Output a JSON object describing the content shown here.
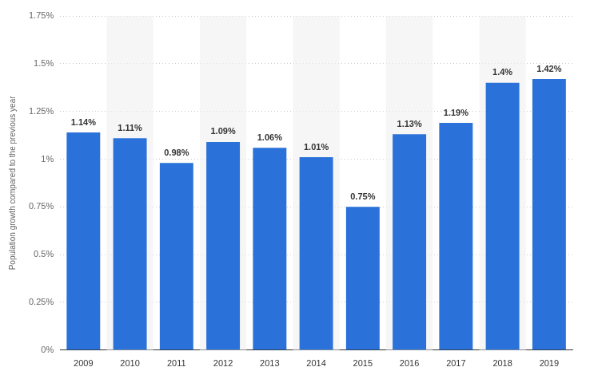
{
  "chart_data": {
    "type": "bar",
    "y_label": "Population growth compared to the previous year",
    "categories": [
      "2009",
      "2010",
      "2011",
      "2012",
      "2013",
      "2014",
      "2015",
      "2016",
      "2017",
      "2018",
      "2019"
    ],
    "values": [
      1.14,
      1.11,
      0.98,
      1.09,
      1.06,
      1.01,
      0.75,
      1.13,
      1.19,
      1.4,
      1.42
    ],
    "value_labels": [
      "1.14%",
      "1.11%",
      "0.98%",
      "1.09%",
      "1.06%",
      "1.01%",
      "0.75%",
      "1.13%",
      "1.19%",
      "1.4%",
      "1.42%"
    ],
    "color": "#2a72d9",
    "ylim": [
      0,
      1.75
    ],
    "yticks": [
      {
        "value": 0,
        "label": "0%"
      },
      {
        "value": 0.25,
        "label": "0.25%"
      },
      {
        "value": 0.5,
        "label": "0.5%"
      },
      {
        "value": 0.75,
        "label": "0.75%"
      },
      {
        "value": 1,
        "label": "1%"
      },
      {
        "value": 1.25,
        "label": "1.25%"
      },
      {
        "value": 1.5,
        "label": "1.5%"
      },
      {
        "value": 1.75,
        "label": "1.75%"
      }
    ],
    "grid": true,
    "data_labels": true
  }
}
